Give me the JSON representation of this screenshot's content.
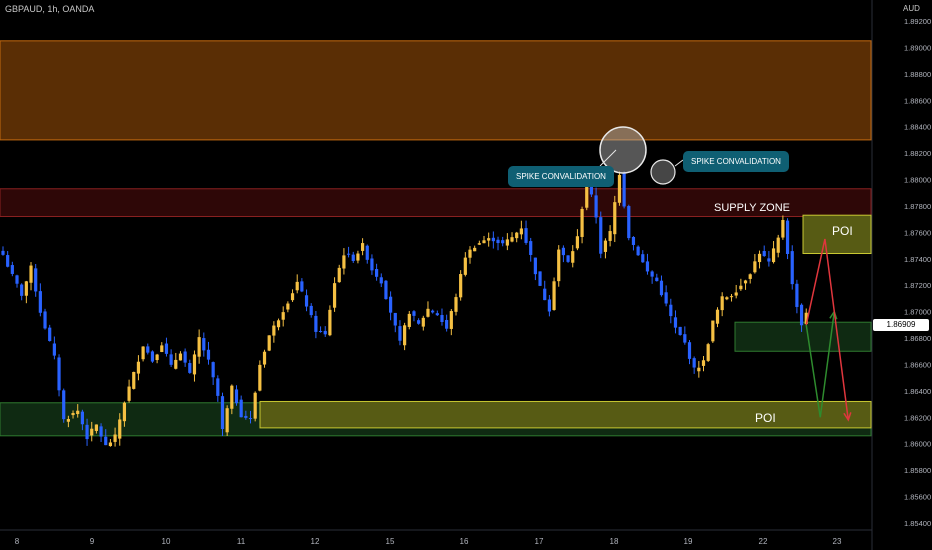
{
  "header": {
    "symbol_info": "GBPAUD, 1h, OANDA",
    "currency": "AUD"
  },
  "price_axis": {
    "labels": [
      "1.89200",
      "1.89000",
      "1.88800",
      "1.88600",
      "1.88400",
      "1.88200",
      "1.88000",
      "1.87800",
      "1.87600",
      "1.87400",
      "1.87200",
      "1.87000",
      "1.86800",
      "1.86600",
      "1.86400",
      "1.86200",
      "1.86000",
      "1.85800",
      "1.85600",
      "1.85400"
    ],
    "current_price": "1.86909"
  },
  "time_axis": {
    "labels": [
      "8",
      "9",
      "10",
      "11",
      "12",
      "15",
      "16",
      "17",
      "18",
      "19",
      "22",
      "23"
    ]
  },
  "annotations": {
    "spike_1": "SPIKE CONVALIDATION",
    "spike_2": "SPIKE CONVALIDATION",
    "supply_zone": "SUPPLY ZONE",
    "poi_upper": "POI",
    "poi_lower": "POI"
  },
  "colors": {
    "bull_candle": "#f5c043",
    "bear_candle": "#2962ff",
    "supply_top_zone": "#5a2e05",
    "supply_zone": "#2e0707",
    "demand_zone": "#0f2a12",
    "poi_zone": "#575b14",
    "arrow_up": "#2e8b2e",
    "arrow_down": "#e0363d"
  },
  "chart_data": {
    "type": "candlestick",
    "symbol": "GBPAUD",
    "timeframe": "1h",
    "ylim": [
      1.854,
      1.892
    ],
    "zones": [
      {
        "name": "upper supply",
        "from": 1.883,
        "to": 1.8905
      },
      {
        "name": "SUPPLY ZONE",
        "from": 1.8772,
        "to": 1.8793
      },
      {
        "name": "POI",
        "from": 1.8744,
        "to": 1.8773
      },
      {
        "name": "demand",
        "from": 1.867,
        "to": 1.8692
      },
      {
        "name": "demand lower",
        "from": 1.8606,
        "to": 1.8631
      },
      {
        "name": "POI",
        "from": 1.8612,
        "to": 1.8632
      }
    ],
    "path_points": [
      [
        0,
        1.8743
      ],
      [
        2,
        1.8727
      ],
      [
        4,
        1.8713
      ],
      [
        6,
        1.8733
      ],
      [
        8,
        1.87
      ],
      [
        11,
        1.8665
      ],
      [
        13,
        1.8618
      ],
      [
        16,
        1.8625
      ],
      [
        18,
        1.8605
      ],
      [
        20,
        1.8614
      ],
      [
        22,
        1.8598
      ],
      [
        24,
        1.8605
      ],
      [
        26,
        1.8632
      ],
      [
        28,
        1.8653
      ],
      [
        30,
        1.8675
      ],
      [
        32,
        1.8663
      ],
      [
        34,
        1.8676
      ],
      [
        36,
        1.8658
      ],
      [
        38,
        1.867
      ],
      [
        40,
        1.8652
      ],
      [
        42,
        1.868
      ],
      [
        44,
        1.8662
      ],
      [
        46,
        1.8636
      ],
      [
        47,
        1.861
      ],
      [
        49,
        1.8642
      ],
      [
        51,
        1.8622
      ],
      [
        53,
        1.8618
      ],
      [
        55,
        1.866
      ],
      [
        57,
        1.8682
      ],
      [
        59,
        1.8695
      ],
      [
        61,
        1.8708
      ],
      [
        63,
        1.8722
      ],
      [
        65,
        1.8705
      ],
      [
        67,
        1.8686
      ],
      [
        69,
        1.8682
      ],
      [
        71,
        1.8722
      ],
      [
        73,
        1.8744
      ],
      [
        75,
        1.874
      ],
      [
        77,
        1.875
      ],
      [
        79,
        1.8732
      ],
      [
        81,
        1.8723
      ],
      [
        83,
        1.87
      ],
      [
        85,
        1.8676
      ],
      [
        87,
        1.87
      ],
      [
        89,
        1.869
      ],
      [
        91,
        1.8702
      ],
      [
        93,
        1.8698
      ],
      [
        95,
        1.8687
      ],
      [
        97,
        1.8712
      ],
      [
        99,
        1.8742
      ],
      [
        101,
        1.875
      ],
      [
        103,
        1.8754
      ],
      [
        105,
        1.8755
      ],
      [
        107,
        1.8751
      ],
      [
        109,
        1.8756
      ],
      [
        111,
        1.8764
      ],
      [
        113,
        1.8742
      ],
      [
        115,
        1.8718
      ],
      [
        117,
        1.8702
      ],
      [
        119,
        1.8747
      ],
      [
        121,
        1.8737
      ],
      [
        123,
        1.8756
      ],
      [
        125,
        1.8802
      ],
      [
        127,
        1.8772
      ],
      [
        128,
        1.8745
      ],
      [
        130,
        1.876
      ],
      [
        132,
        1.8805
      ],
      [
        134,
        1.8757
      ],
      [
        136,
        1.8744
      ],
      [
        138,
        1.873
      ],
      [
        140,
        1.8723
      ],
      [
        142,
        1.8705
      ],
      [
        144,
        1.8687
      ],
      [
        146,
        1.8676
      ],
      [
        148,
        1.8656
      ],
      [
        150,
        1.8662
      ],
      [
        152,
        1.8692
      ],
      [
        154,
        1.871
      ],
      [
        156,
        1.8713
      ],
      [
        158,
        1.872
      ],
      [
        160,
        1.873
      ],
      [
        162,
        1.8745
      ],
      [
        164,
        1.8737
      ],
      [
        166,
        1.8755
      ],
      [
        167,
        1.877
      ],
      [
        169,
        1.872
      ],
      [
        171,
        1.869
      ],
      [
        172,
        1.87
      ]
    ],
    "projections": [
      {
        "color": "green",
        "points": [
          [
            1.869,
            172
          ],
          [
            1.862,
            175
          ],
          [
            1.87,
            178
          ]
        ]
      },
      {
        "color": "red",
        "points": [
          [
            1.869,
            172
          ],
          [
            1.8755,
            176
          ],
          [
            1.8618,
            181
          ]
        ]
      }
    ]
  }
}
